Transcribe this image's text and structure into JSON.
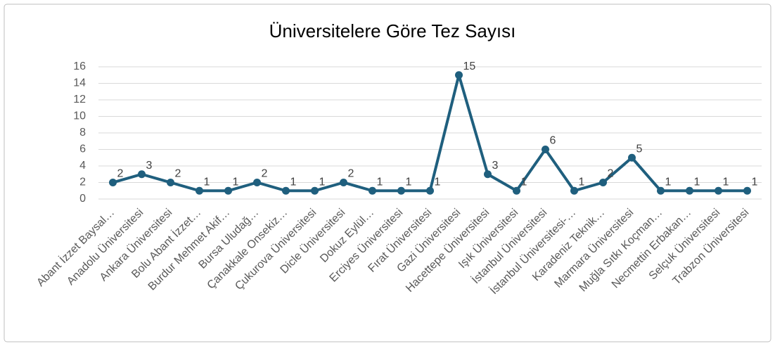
{
  "chart_data": {
    "type": "line",
    "title": "Üniversitelere Göre Tez Sayısı",
    "categories": [
      "Abant İzzet Baysal…",
      "Anadolu Üniversitesi",
      "Ankara Üniversitesi",
      "Bolu Abant İzzet…",
      "Burdur Mehmet Akif…",
      "Bursa Uludağ…",
      "Çanakkale Onsekiz…",
      "Çukurova Üniversitesi",
      "Dicle Üniversitesi",
      "Dokuz Eylül…",
      "Erciyes Üniversitesi",
      "Fırat Üniversitesi",
      "Gazi Üniversitesi",
      "Hacettepe Üniversitesi",
      "Işık Üniversitesi",
      "İstanbul Üniversitesi",
      "İstanbul Üniversitesi-…",
      "Karadeniz Teknik…",
      "Marmara Üniversitesi",
      "Muğla Sıtkı Koçman…",
      "Necmettin Erbakan…",
      "Selçuk Üniversitesi",
      "Trabzon Üniversitesi"
    ],
    "values": [
      2,
      3,
      2,
      1,
      1,
      2,
      1,
      1,
      2,
      1,
      1,
      1,
      15,
      3,
      1,
      6,
      1,
      2,
      5,
      1,
      1,
      1,
      1
    ],
    "color": "#1f5f7e",
    "ylim": [
      0,
      16
    ],
    "yticks": [
      0,
      2,
      4,
      6,
      8,
      10,
      12,
      14,
      16
    ],
    "grid": true
  }
}
